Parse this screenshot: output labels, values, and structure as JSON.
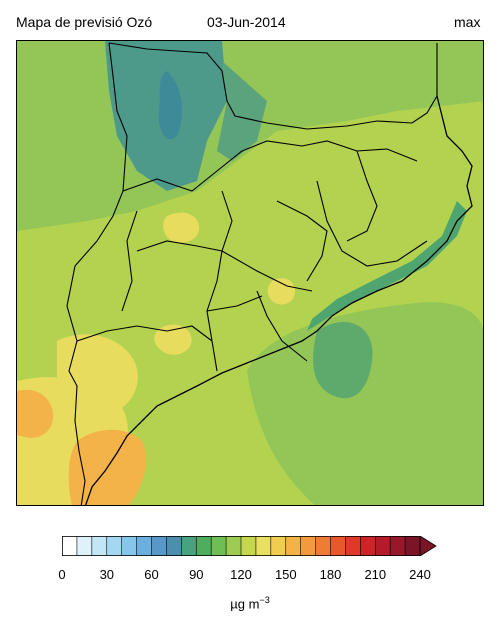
{
  "header": {
    "title": "Mapa de previsió Ozó",
    "date": "03-Jun-2014",
    "statistic": "max"
  },
  "colorbar": {
    "min": 0,
    "max": 240,
    "step": 10,
    "extend": "max",
    "ticks": [
      "0",
      "30",
      "60",
      "90",
      "120",
      "150",
      "180",
      "210",
      "240"
    ],
    "unit_base": "µg m",
    "unit_exponent": "−3",
    "colors": [
      "#ffffff",
      "#dff2fb",
      "#c2e6f6",
      "#a4d8f1",
      "#86c6ea",
      "#6aafde",
      "#5898c8",
      "#4a8fab",
      "#47a27e",
      "#4fae5e",
      "#6fbe55",
      "#9ccc52",
      "#c6d74e",
      "#e9e063",
      "#f2cc4e",
      "#f5b245",
      "#f39a3e",
      "#ee7b36",
      "#e8582d",
      "#df3a27",
      "#cc2427",
      "#b21b27",
      "#96182a",
      "#7a1426"
    ],
    "extend_color": "#7a1426"
  },
  "map": {
    "fields": [
      {
        "level": 82,
        "color": "#4a9a8a",
        "note": "Pyrenees low ozone"
      },
      {
        "level": 95,
        "color": "#5ea870",
        "note": "sea low ozone"
      },
      {
        "level": 112,
        "color": "#8ec456"
      },
      {
        "level": 140,
        "color": "#ecd85a"
      },
      {
        "level": 155,
        "color": "#f3b548"
      }
    ]
  }
}
